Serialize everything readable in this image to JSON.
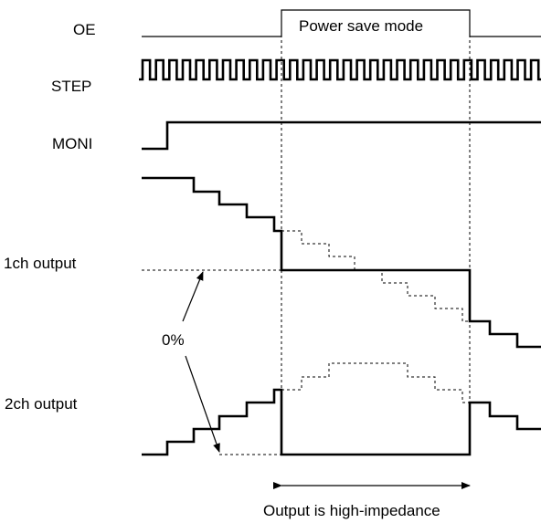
{
  "signals": {
    "oe": "OE",
    "step": "STEP",
    "moni": "MONI",
    "ch1": "1ch output",
    "ch2": "2ch output"
  },
  "annotations": {
    "power_save": "Power save mode",
    "zero_percent": "0%",
    "high_impedance": "Output is high-impedance"
  }
}
